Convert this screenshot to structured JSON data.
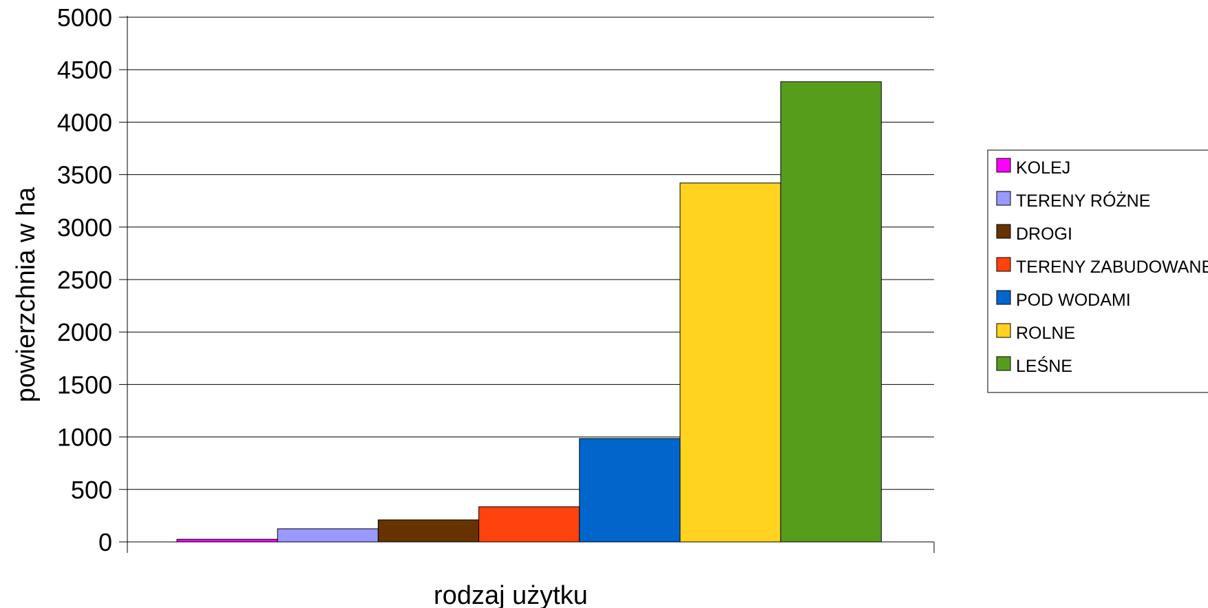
{
  "chart_data": {
    "type": "bar",
    "title": "",
    "xlabel": "rodzaj użytku",
    "ylabel": "powierzchnia w ha",
    "ylim": [
      0,
      5000
    ],
    "yticks": [
      0,
      500,
      1000,
      1500,
      2000,
      2500,
      3000,
      3500,
      4000,
      4500,
      5000
    ],
    "grid": true,
    "legend_position": "right",
    "categories": [
      ""
    ],
    "series": [
      {
        "name": "KOLEJ",
        "values": [
          25
        ],
        "color": "#ff00ff"
      },
      {
        "name": "TERENY RÓŻNE",
        "values": [
          125
        ],
        "color": "#9999ff"
      },
      {
        "name": "DROGI",
        "values": [
          210
        ],
        "color": "#663300"
      },
      {
        "name": "TERENY ZABUDOWANE",
        "values": [
          335
        ],
        "color": "#ff420e"
      },
      {
        "name": "POD WODAMI",
        "values": [
          985
        ],
        "color": "#0066cc"
      },
      {
        "name": "ROLNE",
        "values": [
          3420
        ],
        "color": "#ffd320"
      },
      {
        "name": "LEŚNE",
        "values": [
          4385
        ],
        "color": "#579d1c"
      }
    ]
  }
}
